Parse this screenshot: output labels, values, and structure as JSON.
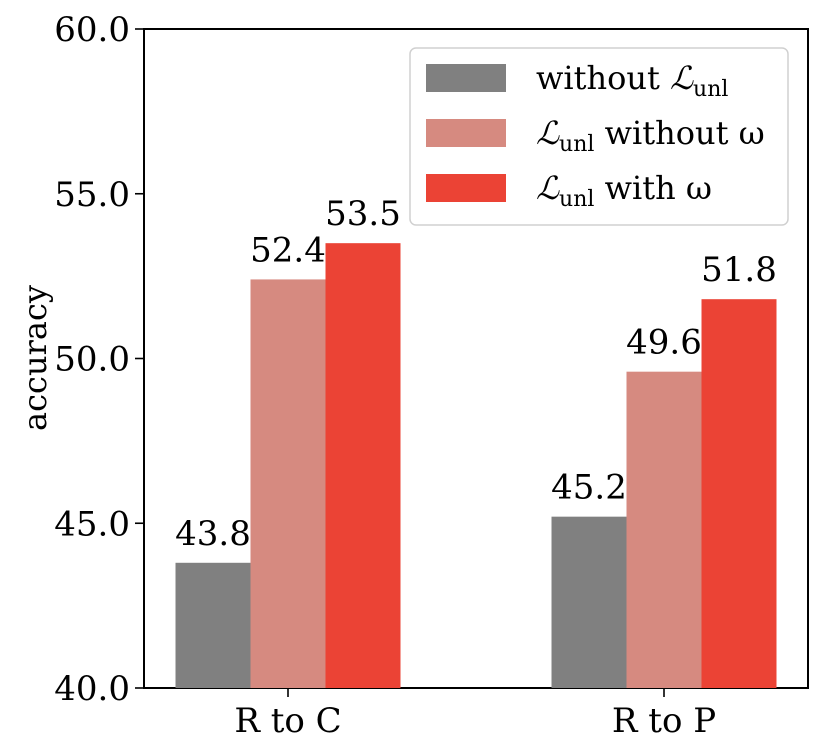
{
  "chart_data": {
    "type": "bar",
    "categories": [
      "R to C",
      "R to P"
    ],
    "series": [
      {
        "name": "without ℒunl",
        "values": [
          43.8,
          45.2
        ],
        "color": "#808080"
      },
      {
        "name": "ℒunl without ω",
        "values": [
          52.4,
          49.6
        ],
        "color": "#d68a80"
      },
      {
        "name": "ℒunl with ω",
        "values": [
          53.5,
          51.8
        ],
        "color": "#eb4335"
      }
    ],
    "data_labels": [
      [
        "43.8",
        "45.2"
      ],
      [
        "52.4",
        "49.6"
      ],
      [
        "53.5",
        "51.8"
      ]
    ],
    "ylabel": "accuracy",
    "xlabel": "",
    "ylim": [
      40.0,
      60.0
    ],
    "yticks": [
      40.0,
      45.0,
      50.0,
      55.0,
      60.0
    ],
    "ytick_labels": [
      "40.0",
      "45.0",
      "50.0",
      "55.0",
      "60.0"
    ],
    "grid": false,
    "legend_position": "top-right",
    "legend": [
      {
        "prefix": "without ",
        "script": "ℒ",
        "sub": "unl",
        "suffix": ""
      },
      {
        "prefix": "",
        "script": "ℒ",
        "sub": "unl",
        "suffix": " without ω"
      },
      {
        "prefix": "",
        "script": "ℒ",
        "sub": "unl",
        "suffix": " with ω"
      }
    ]
  }
}
